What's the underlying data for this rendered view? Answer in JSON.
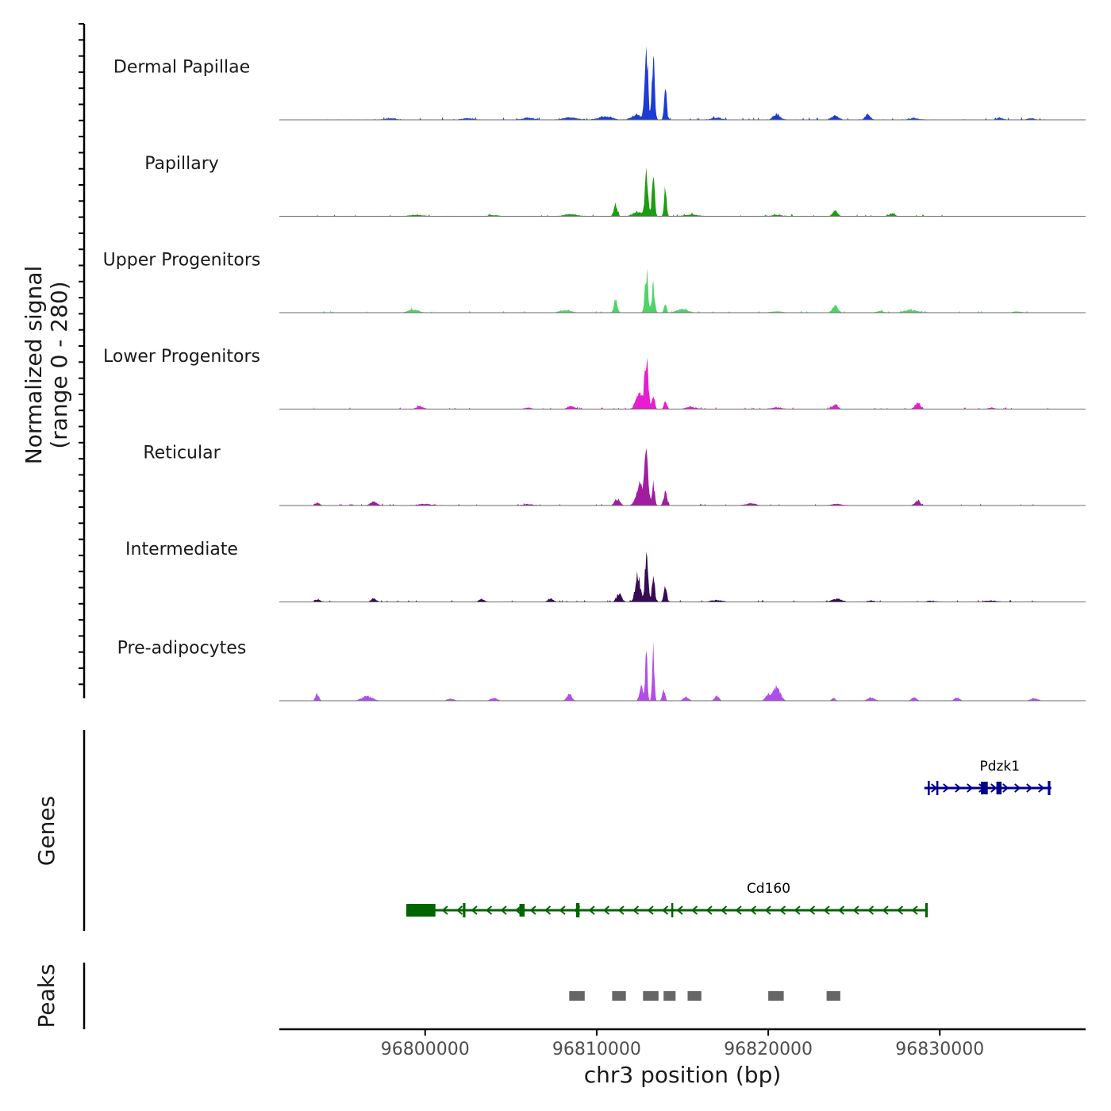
{
  "chart_data": {
    "type": "area",
    "title": "",
    "ylabel_line1": "Normalized signal",
    "ylabel_line2": "(range 0 - 280)",
    "genes_label": "Genes",
    "peaks_label": "Peaks",
    "xlabel": "chr3 position (bp)",
    "xlim": [
      96791500,
      96838500
    ],
    "ylim": [
      0,
      280
    ],
    "xticks": [
      {
        "value": 96800000,
        "label": "96800000"
      },
      {
        "value": 96810000,
        "label": "96810000"
      },
      {
        "value": 96820000,
        "label": "96820000"
      },
      {
        "value": 96830000,
        "label": "96830000"
      }
    ],
    "tracks": [
      {
        "name": "Dermal Papillae",
        "color": "#1B3DD6",
        "baseline": 4,
        "peaks": [
          [
            96812900,
            280,
            90
          ],
          [
            96813300,
            230,
            80
          ],
          [
            96814000,
            150,
            70
          ],
          [
            96812400,
            20,
            300
          ],
          [
            96810500,
            12,
            400
          ],
          [
            96820500,
            22,
            200
          ],
          [
            96823900,
            16,
            200
          ],
          [
            96825800,
            22,
            150
          ],
          [
            96808500,
            9,
            400
          ],
          [
            96806000,
            8,
            300
          ],
          [
            96802500,
            6,
            300
          ],
          [
            96798000,
            6,
            300
          ],
          [
            96828500,
            6,
            300
          ],
          [
            96833500,
            7,
            200
          ],
          [
            96835300,
            6,
            200
          ],
          [
            96817000,
            8,
            300
          ]
        ]
      },
      {
        "name": "Papillary",
        "color": "#1A9E0F",
        "baseline": 3,
        "peaks": [
          [
            96812900,
            180,
            90
          ],
          [
            96813300,
            150,
            80
          ],
          [
            96814000,
            110,
            70
          ],
          [
            96811100,
            45,
            100
          ],
          [
            96812400,
            16,
            300
          ],
          [
            96823900,
            20,
            150
          ],
          [
            96827200,
            12,
            150
          ],
          [
            96808500,
            7,
            400
          ],
          [
            96815500,
            6,
            400
          ],
          [
            96799500,
            5,
            400
          ],
          [
            96820500,
            5,
            300
          ],
          [
            96804000,
            4,
            300
          ]
        ]
      },
      {
        "name": "Upper Progenitors",
        "color": "#4ED466",
        "baseline": 3,
        "peaks": [
          [
            96812900,
            155,
            90
          ],
          [
            96813300,
            105,
            80
          ],
          [
            96814000,
            40,
            70
          ],
          [
            96811100,
            50,
            100
          ],
          [
            96823900,
            30,
            150
          ],
          [
            96799300,
            12,
            300
          ],
          [
            96808200,
            10,
            300
          ],
          [
            96828300,
            10,
            400
          ],
          [
            96815000,
            14,
            300
          ],
          [
            96820500,
            5,
            300
          ],
          [
            96834500,
            5,
            200
          ],
          [
            96826500,
            6,
            200
          ]
        ]
      },
      {
        "name": "Lower Progenitors",
        "color": "#E81CD2",
        "baseline": 3,
        "peaks": [
          [
            96812900,
            210,
            100
          ],
          [
            96813300,
            55,
            80
          ],
          [
            96814000,
            30,
            80
          ],
          [
            96812500,
            60,
            200
          ],
          [
            96823900,
            20,
            150
          ],
          [
            96828700,
            25,
            150
          ],
          [
            96799700,
            12,
            200
          ],
          [
            96808500,
            12,
            200
          ],
          [
            96815500,
            8,
            300
          ],
          [
            96820500,
            6,
            300
          ],
          [
            96806000,
            5,
            200
          ],
          [
            96833000,
            5,
            200
          ]
        ]
      },
      {
        "name": "Reticular",
        "color": "#A11CA0",
        "baseline": 3,
        "peaks": [
          [
            96812900,
            220,
            100
          ],
          [
            96813300,
            85,
            80
          ],
          [
            96814000,
            50,
            100
          ],
          [
            96812500,
            80,
            200
          ],
          [
            96811200,
            25,
            150
          ],
          [
            96797000,
            15,
            200
          ],
          [
            96828700,
            20,
            150
          ],
          [
            96793700,
            10,
            150
          ],
          [
            96819000,
            8,
            300
          ],
          [
            96824000,
            6,
            300
          ],
          [
            96800000,
            6,
            400
          ],
          [
            96806000,
            5,
            300
          ]
        ]
      },
      {
        "name": "Intermediate",
        "color": "#380A58",
        "baseline": 3,
        "peaks": [
          [
            96812900,
            180,
            90
          ],
          [
            96813300,
            110,
            80
          ],
          [
            96814000,
            55,
            90
          ],
          [
            96812400,
            100,
            150
          ],
          [
            96811300,
            30,
            150
          ],
          [
            96797000,
            14,
            150
          ],
          [
            96803300,
            12,
            150
          ],
          [
            96807300,
            12,
            150
          ],
          [
            96824000,
            12,
            300
          ],
          [
            96793700,
            8,
            200
          ],
          [
            96817000,
            7,
            300
          ],
          [
            96826000,
            6,
            200
          ],
          [
            96833000,
            5,
            300
          ],
          [
            96829500,
            5,
            200
          ]
        ]
      },
      {
        "name": "Pre-adipocytes",
        "color": "#B14DEB",
        "baseline": 0,
        "peaks": [
          [
            96812900,
            200,
            60
          ],
          [
            96813300,
            200,
            60
          ],
          [
            96812600,
            70,
            100
          ],
          [
            96813900,
            45,
            80
          ],
          [
            96820500,
            55,
            200
          ],
          [
            96820000,
            25,
            150
          ],
          [
            96808400,
            25,
            150
          ],
          [
            96793700,
            28,
            100
          ],
          [
            96796600,
            18,
            300
          ],
          [
            96817000,
            20,
            120
          ],
          [
            96815200,
            15,
            150
          ],
          [
            96823800,
            12,
            100
          ],
          [
            96826000,
            12,
            200
          ],
          [
            96828500,
            12,
            150
          ],
          [
            96831000,
            12,
            150
          ],
          [
            96804000,
            10,
            200
          ],
          [
            96835500,
            10,
            200
          ],
          [
            96801500,
            8,
            200
          ]
        ]
      }
    ],
    "genes": [
      {
        "name": "Pdzk1",
        "strand": "+",
        "color": "#00008B",
        "start": 96829100,
        "end": 96836500,
        "exons": [
          [
            96829300,
            96829400
          ],
          [
            96829800,
            96829900
          ],
          [
            96832400,
            96832800
          ],
          [
            96833300,
            96833600
          ],
          [
            96836300,
            96836450
          ]
        ]
      },
      {
        "name": "Cd160",
        "strand": "-",
        "color": "#006400",
        "start": 96798900,
        "end": 96829300,
        "exons": [
          [
            96798900,
            96800600
          ],
          [
            96802200,
            96802350
          ],
          [
            96805500,
            96805800
          ],
          [
            96808800,
            96809000
          ],
          [
            96814350,
            96814400
          ],
          [
            96829150,
            96829300
          ]
        ]
      }
    ],
    "peak_regions": [
      [
        96808400,
        96809300
      ],
      [
        96810900,
        96811700
      ],
      [
        96812700,
        96813600
      ],
      [
        96813900,
        96814600
      ],
      [
        96815300,
        96816100
      ],
      [
        96820000,
        96820900
      ],
      [
        96823400,
        96824200
      ]
    ]
  }
}
